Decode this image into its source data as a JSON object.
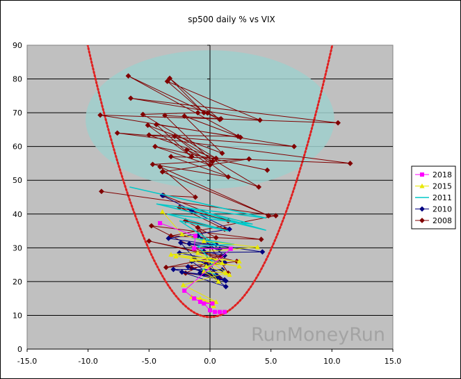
{
  "chart_data": {
    "type": "line",
    "title": "sp500 daily % vs VIX",
    "xlabel": "",
    "ylabel": "",
    "xlim": [
      -15,
      15
    ],
    "ylim": [
      0,
      90
    ],
    "x_ticks": [
      -15,
      -10,
      -5,
      0,
      5,
      10,
      15
    ],
    "x_tick_labels": [
      "-15.0",
      "-10.0",
      "-5.0",
      "0.0",
      "5.0",
      "10.0",
      "15.0"
    ],
    "y_ticks": [
      0,
      10,
      20,
      30,
      40,
      50,
      60,
      70,
      80,
      90
    ],
    "y_tick_labels": [
      "0",
      "10",
      "20",
      "30",
      "40",
      "50",
      "60",
      "70",
      "80",
      "90"
    ],
    "grid": "horizontal",
    "legend_position": "right",
    "watermark": "RunMoneyRun",
    "annotations": [
      {
        "kind": "ellipse",
        "cx": 0,
        "cy": 68,
        "rx": 10.2,
        "ry": 20.5,
        "color": "#9fcfcc"
      },
      {
        "kind": "parabola",
        "vertex_x": 0,
        "vertex_y": 9.5,
        "a": 0.8,
        "color": "#e02020",
        "style": "dotted"
      }
    ],
    "series": [
      {
        "name": "2008",
        "color": "#800000",
        "marker": "diamond",
        "points": [
          [
            -8.9,
            46.7
          ],
          [
            5.4,
            39.5
          ],
          [
            -3.2,
            33.5
          ],
          [
            4.2,
            32.5
          ],
          [
            -4.8,
            36.5
          ],
          [
            1.2,
            25.5
          ],
          [
            -3.6,
            24.2
          ],
          [
            0.9,
            27.5
          ],
          [
            -5,
            32
          ],
          [
            2.2,
            26
          ],
          [
            -1.5,
            24
          ],
          [
            0.5,
            21.4
          ],
          [
            -2,
            22.5
          ],
          [
            -0.3,
            25.5
          ],
          [
            0.8,
            21
          ],
          [
            -0.5,
            23
          ],
          [
            1.5,
            22.5
          ],
          [
            -1,
            36
          ],
          [
            0.5,
            33
          ],
          [
            -2,
            38
          ],
          [
            1.2,
            35.5
          ],
          [
            -2.5,
            42
          ],
          [
            1.5,
            38
          ],
          [
            -3.8,
            45.5
          ],
          [
            -1.2,
            45
          ],
          [
            -4.1,
            54
          ],
          [
            4.8,
            39.5
          ],
          [
            -3.9,
            52.5
          ],
          [
            3.2,
            56.3
          ],
          [
            -4.7,
            54.7
          ],
          [
            1.5,
            51
          ],
          [
            -2.9,
            63
          ],
          [
            4.0,
            48
          ],
          [
            -3.2,
            57
          ],
          [
            11.5,
            55
          ],
          [
            -7.6,
            64
          ],
          [
            6.9,
            60
          ],
          [
            -9.0,
            69.3
          ],
          [
            10.5,
            67
          ],
          [
            -6.5,
            74.3
          ],
          [
            4.1,
            67.8
          ],
          [
            -3.5,
            79.3
          ],
          [
            -0.5,
            70
          ],
          [
            -3.3,
            80.2
          ],
          [
            0.8,
            68
          ],
          [
            -6.7,
            80.9
          ],
          [
            2.5,
            62.7
          ],
          [
            -4.4,
            66.5
          ],
          [
            -1.5,
            57
          ],
          [
            -5.1,
            66.3
          ],
          [
            1,
            58
          ],
          [
            -2.1,
            69
          ],
          [
            2.3,
            63
          ],
          [
            -5,
            63.4
          ],
          [
            0.5,
            56.5
          ],
          [
            -5.5,
            69.5
          ],
          [
            -1,
            70
          ],
          [
            -0.2,
            69.9
          ],
          [
            0.9,
            68.2
          ],
          [
            -3.7,
            69.2
          ],
          [
            0.2,
            55.5
          ],
          [
            -1.9,
            59
          ],
          [
            0,
            54.5
          ],
          [
            -4.5,
            60
          ],
          [
            4.7,
            53
          ]
        ]
      },
      {
        "name": "2010",
        "color": "#000080",
        "marker": "diamond",
        "points": [
          [
            -3.9,
            45.5
          ],
          [
            -1.5,
            41
          ],
          [
            1.6,
            35.5
          ],
          [
            -3.4,
            32.8
          ],
          [
            4.3,
            28.8
          ],
          [
            -2.5,
            28.5
          ],
          [
            1.2,
            25.7
          ],
          [
            -1.5,
            26
          ],
          [
            1.3,
            18.5
          ],
          [
            -2.3,
            22.8
          ],
          [
            0.6,
            21.7
          ],
          [
            -1.8,
            24.4
          ],
          [
            1.3,
            20.2
          ],
          [
            -3,
            23.6
          ],
          [
            1.0,
            23.5
          ],
          [
            -0.8,
            22.6
          ],
          [
            0.7,
            20.8
          ],
          [
            -0.5,
            29
          ],
          [
            1.2,
            27.7
          ],
          [
            -1,
            33.5
          ],
          [
            0.5,
            31
          ],
          [
            -1.7,
            31.2
          ],
          [
            0.8,
            29.6
          ],
          [
            -2.4,
            31.5
          ],
          [
            -1.3,
            27
          ],
          [
            -0.3,
            25
          ],
          [
            1.2,
            20.5
          ],
          [
            -0.5,
            22.2
          ]
        ]
      },
      {
        "name": "2011",
        "color": "#00c8c8",
        "marker": "none",
        "points": [
          [
            -6.6,
            48
          ],
          [
            4.6,
            38.8
          ],
          [
            -4.4,
            43
          ],
          [
            4.6,
            35.2
          ],
          [
            -2,
            42
          ],
          [
            3.5,
            37
          ],
          [
            -3.5,
            40
          ],
          [
            1.5,
            35
          ],
          [
            -2.5,
            38
          ],
          [
            0.5,
            31
          ],
          [
            -1.5,
            33
          ],
          [
            2,
            31
          ],
          [
            -1,
            30.5
          ],
          [
            0.3,
            25.5
          ],
          [
            -0.6,
            23.5
          ],
          [
            0.5,
            22
          ]
        ]
      },
      {
        "name": "2015",
        "color": "#e8e800",
        "marker": "triangle",
        "points": [
          [
            -3.9,
            40.7
          ],
          [
            -2.3,
            34
          ],
          [
            -0.5,
            32
          ],
          [
            3.9,
            30.2
          ],
          [
            -3.2,
            28
          ],
          [
            2.4,
            26
          ],
          [
            -2.8,
            27.5
          ],
          [
            2.4,
            24.5
          ],
          [
            -1.5,
            26.5
          ],
          [
            1.6,
            22
          ],
          [
            -1,
            28.5
          ],
          [
            1.0,
            25.5
          ],
          [
            -0.3,
            24.5
          ],
          [
            0.7,
            20
          ],
          [
            -0.5,
            23
          ],
          [
            1.3,
            22.5
          ],
          [
            -2.2,
            19
          ],
          [
            0.5,
            14
          ],
          [
            -1.5,
            15.5
          ],
          [
            0.2,
            13.5
          ],
          [
            -0.8,
            15
          ],
          [
            0.3,
            12.8
          ]
        ]
      },
      {
        "name": "2018",
        "color": "#ff00ff",
        "marker": "square",
        "points": [
          [
            -4.1,
            37.3
          ],
          [
            -1.2,
            33.5
          ],
          [
            -1.3,
            29.8
          ],
          [
            1.7,
            29.7
          ],
          [
            -2.1,
            17.3
          ],
          [
            -1.3,
            15
          ],
          [
            -0.8,
            14
          ],
          [
            0.2,
            13.5
          ],
          [
            -0.5,
            13.5
          ],
          [
            0,
            11.5
          ],
          [
            0.4,
            11
          ],
          [
            0.8,
            11
          ],
          [
            1.2,
            11
          ]
        ]
      }
    ],
    "legend_order": [
      "2018",
      "2015",
      "2011",
      "2010",
      "2008"
    ]
  }
}
